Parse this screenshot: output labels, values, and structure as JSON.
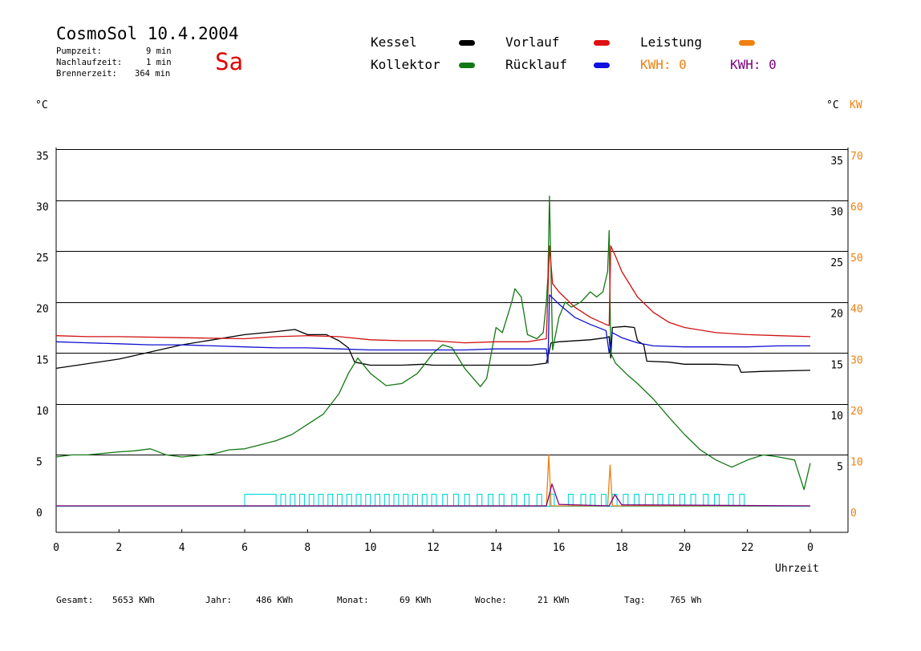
{
  "header": {
    "title": "CosmoSol 10.4.2004",
    "day": "Sa",
    "pumpzeit_label": "Pumpzeit:",
    "pumpzeit_value": "9 min",
    "nachlaufzeit_label": "Nachlaufzeit:",
    "nachlaufzeit_value": "1 min",
    "brennerzeit_label": "Brennerzeit:",
    "brennerzeit_value": "364 min"
  },
  "legend": {
    "kessel": "Kessel",
    "kollektor": "Kollektor",
    "vorlauf": "Vorlauf",
    "ruecklauf": "Rücklauf",
    "leistung": "Leistung",
    "kwh_orange": "KWH: 0",
    "kwh_purple": "KWH: 0"
  },
  "axes": {
    "left_unit": "°C",
    "right_unit_c": "°C",
    "right_unit_kw": "KW",
    "x_label": "Uhrzeit"
  },
  "footer": {
    "gesamt_label": "Gesamt:",
    "gesamt_value": "5653 KWh",
    "jahr_label": "Jahr:",
    "jahr_value": "486 KWh",
    "monat_label": "Monat:",
    "monat_value": "69 KWh",
    "woche_label": "Woche:",
    "woche_value": "21 KWh",
    "tag_label": "Tag:",
    "tag_value": "765 Wh"
  },
  "colors": {
    "kessel": "#000000",
    "kollektor": "#137813",
    "vorlauf": "#d01010",
    "ruecklauf": "#1010d0",
    "leistung": "#f08010",
    "kwh_purple": "#800080",
    "pump": "#00d8d8"
  },
  "chart_data": {
    "type": "line",
    "xlabel": "Uhrzeit",
    "ylabel": "°C",
    "y2label": "KW",
    "xlim": [
      0,
      24
    ],
    "ylim": [
      0,
      35
    ],
    "y2lim": [
      0,
      70
    ],
    "x_tick_labels": [
      "0",
      "2",
      "4",
      "6",
      "8",
      "10",
      "12",
      "14",
      "16",
      "18",
      "20",
      "22",
      "0"
    ],
    "x_tick_hours": [
      0,
      2,
      4,
      6,
      8,
      10,
      12,
      14,
      16,
      18,
      20,
      22,
      24
    ],
    "y_ticks": [
      0,
      5,
      10,
      15,
      20,
      25,
      30,
      35
    ],
    "y_right_c_ticks": [
      5,
      10,
      15,
      20,
      25,
      30,
      35
    ],
    "y2_ticks": [
      0,
      10,
      20,
      30,
      40,
      50,
      60,
      70
    ],
    "grid": true,
    "legend_position": "top",
    "series": [
      {
        "name": "Kessel",
        "color": "#000000",
        "points": [
          [
            0,
            13.5
          ],
          [
            2,
            14.4
          ],
          [
            4,
            15.8
          ],
          [
            6,
            16.8
          ],
          [
            7,
            17.1
          ],
          [
            7.6,
            17.3
          ],
          [
            8,
            16.8
          ],
          [
            8.6,
            16.8
          ],
          [
            9.0,
            16.2
          ],
          [
            9.3,
            15.5
          ],
          [
            9.5,
            14.1
          ],
          [
            10,
            13.8
          ],
          [
            11,
            13.8
          ],
          [
            11.7,
            13.9
          ],
          [
            12,
            13.8
          ],
          [
            13,
            13.8
          ],
          [
            14,
            13.8
          ],
          [
            15.1,
            13.8
          ],
          [
            15.6,
            14.0
          ],
          [
            15.7,
            15.3
          ],
          [
            15.75,
            16.0
          ],
          [
            16,
            16.1
          ],
          [
            17,
            16.3
          ],
          [
            17.5,
            16.5
          ],
          [
            17.6,
            16.6
          ],
          [
            17.65,
            14.5
          ],
          [
            17.7,
            17.5
          ],
          [
            18.1,
            17.6
          ],
          [
            18.4,
            17.5
          ],
          [
            18.5,
            16.2
          ],
          [
            18.7,
            15.8
          ],
          [
            18.8,
            14.2
          ],
          [
            19.5,
            14.1
          ],
          [
            20,
            13.9
          ],
          [
            21,
            13.9
          ],
          [
            21.7,
            13.8
          ],
          [
            21.8,
            13.1
          ],
          [
            22.5,
            13.2
          ],
          [
            24,
            13.3
          ]
        ]
      },
      {
        "name": "Kollektor",
        "color": "#137813",
        "points": [
          [
            0,
            4.8
          ],
          [
            0.5,
            5.0
          ],
          [
            1,
            5.0
          ],
          [
            2,
            5.3
          ],
          [
            2.5,
            5.4
          ],
          [
            3,
            5.6
          ],
          [
            3.5,
            5.0
          ],
          [
            4,
            4.8
          ],
          [
            5,
            5.1
          ],
          [
            5.5,
            5.5
          ],
          [
            6,
            5.6
          ],
          [
            6.5,
            6.0
          ],
          [
            7,
            6.4
          ],
          [
            7.5,
            7.0
          ],
          [
            8,
            8.0
          ],
          [
            8.5,
            9.0
          ],
          [
            9,
            11.0
          ],
          [
            9.3,
            13.0
          ],
          [
            9.6,
            14.5
          ],
          [
            10,
            13.0
          ],
          [
            10.5,
            11.8
          ],
          [
            11,
            12.0
          ],
          [
            11.5,
            13.0
          ],
          [
            12,
            15.0
          ],
          [
            12.3,
            15.8
          ],
          [
            12.6,
            15.5
          ],
          [
            13,
            13.5
          ],
          [
            13.5,
            11.7
          ],
          [
            13.7,
            12.5
          ],
          [
            14,
            17.5
          ],
          [
            14.2,
            17.0
          ],
          [
            14.5,
            20.0
          ],
          [
            14.6,
            21.3
          ],
          [
            14.8,
            20.5
          ],
          [
            15,
            16.8
          ],
          [
            15.3,
            16.4
          ],
          [
            15.5,
            17.0
          ],
          [
            15.6,
            20.0
          ],
          [
            15.65,
            22.5
          ],
          [
            15.7,
            30.4
          ],
          [
            15.8,
            15.3
          ],
          [
            16,
            18.5
          ],
          [
            16.2,
            20.0
          ],
          [
            16.4,
            19.5
          ],
          [
            16.7,
            20.0
          ],
          [
            17,
            21.0
          ],
          [
            17.2,
            20.5
          ],
          [
            17.4,
            21.0
          ],
          [
            17.55,
            23.0
          ],
          [
            17.6,
            27.0
          ],
          [
            17.65,
            15.0
          ],
          [
            17.8,
            14.0
          ],
          [
            18.2,
            12.8
          ],
          [
            18.5,
            12.0
          ],
          [
            19,
            10.5
          ],
          [
            19.5,
            8.7
          ],
          [
            20,
            7.0
          ],
          [
            20.5,
            5.5
          ],
          [
            21,
            4.5
          ],
          [
            21.5,
            3.8
          ],
          [
            22,
            4.5
          ],
          [
            22.5,
            5.0
          ],
          [
            23,
            4.8
          ],
          [
            23.5,
            4.5
          ],
          [
            23.8,
            1.6
          ],
          [
            24,
            4.2
          ]
        ]
      },
      {
        "name": "Vorlauf",
        "color": "#d01010",
        "points": [
          [
            0,
            16.7
          ],
          [
            1,
            16.6
          ],
          [
            2,
            16.6
          ],
          [
            4,
            16.5
          ],
          [
            6,
            16.4
          ],
          [
            7,
            16.6
          ],
          [
            8,
            16.7
          ],
          [
            9,
            16.6
          ],
          [
            10,
            16.3
          ],
          [
            11,
            16.2
          ],
          [
            12,
            16.2
          ],
          [
            13,
            16.0
          ],
          [
            14,
            16.1
          ],
          [
            15,
            16.1
          ],
          [
            15.6,
            16.4
          ],
          [
            15.7,
            25.5
          ],
          [
            15.8,
            21.8
          ],
          [
            16,
            21.0
          ],
          [
            16.5,
            19.5
          ],
          [
            17,
            18.5
          ],
          [
            17.5,
            17.8
          ],
          [
            17.6,
            17.7
          ],
          [
            17.65,
            25.5
          ],
          [
            17.8,
            24.5
          ],
          [
            18,
            23.0
          ],
          [
            18.5,
            20.5
          ],
          [
            19,
            19.0
          ],
          [
            19.5,
            18.0
          ],
          [
            20,
            17.5
          ],
          [
            21,
            17.0
          ],
          [
            22,
            16.8
          ],
          [
            23,
            16.7
          ],
          [
            24,
            16.6
          ]
        ]
      },
      {
        "name": "Rücklauf",
        "color": "#1010d0",
        "points": [
          [
            0,
            16.1
          ],
          [
            1,
            16.0
          ],
          [
            2,
            15.9
          ],
          [
            3,
            15.8
          ],
          [
            4,
            15.8
          ],
          [
            5,
            15.7
          ],
          [
            6,
            15.6
          ],
          [
            7,
            15.5
          ],
          [
            8,
            15.5
          ],
          [
            9,
            15.4
          ],
          [
            10,
            15.3
          ],
          [
            11,
            15.3
          ],
          [
            12,
            15.3
          ],
          [
            13,
            15.3
          ],
          [
            14,
            15.4
          ],
          [
            15,
            15.4
          ],
          [
            15.6,
            15.4
          ],
          [
            15.65,
            14.0
          ],
          [
            15.7,
            20.7
          ],
          [
            16,
            19.8
          ],
          [
            16.5,
            18.5
          ],
          [
            17,
            17.8
          ],
          [
            17.5,
            17.2
          ],
          [
            17.6,
            15.0
          ],
          [
            17.7,
            17.0
          ],
          [
            18,
            16.5
          ],
          [
            18.5,
            16.0
          ],
          [
            19,
            15.7
          ],
          [
            20,
            15.6
          ],
          [
            21,
            15.6
          ],
          [
            22,
            15.6
          ],
          [
            23,
            15.7
          ],
          [
            24,
            15.7
          ]
        ]
      },
      {
        "name": "Leistung",
        "axis": "KW",
        "color": "#f08010",
        "points": [
          [
            0,
            0
          ],
          [
            15.6,
            0
          ],
          [
            15.68,
            10.0
          ],
          [
            15.75,
            0
          ],
          [
            17.55,
            0
          ],
          [
            17.63,
            8.0
          ],
          [
            17.7,
            0
          ],
          [
            24,
            0
          ]
        ]
      },
      {
        "name": "KWH",
        "axis": "KW",
        "color": "#800080",
        "points": [
          [
            0,
            0
          ],
          [
            15.6,
            0
          ],
          [
            15.78,
            4.3
          ],
          [
            16.0,
            0.3
          ],
          [
            17.6,
            0
          ],
          [
            17.78,
            2.2
          ],
          [
            18.0,
            0.2
          ],
          [
            24,
            0
          ]
        ]
      }
    ],
    "pump_on_intervals": [
      [
        6.0,
        7.0
      ],
      [
        7.15,
        7.3
      ],
      [
        7.45,
        7.6
      ],
      [
        7.75,
        7.9
      ],
      [
        8.05,
        8.2
      ],
      [
        8.35,
        8.5
      ],
      [
        8.65,
        8.8
      ],
      [
        8.95,
        9.1
      ],
      [
        9.25,
        9.4
      ],
      [
        9.55,
        9.7
      ],
      [
        9.85,
        10.0
      ],
      [
        10.15,
        10.3
      ],
      [
        10.45,
        10.6
      ],
      [
        10.75,
        10.9
      ],
      [
        11.05,
        11.2
      ],
      [
        11.35,
        11.5
      ],
      [
        11.65,
        11.8
      ],
      [
        11.95,
        12.1
      ],
      [
        12.3,
        12.45
      ],
      [
        12.65,
        12.8
      ],
      [
        13.0,
        13.15
      ],
      [
        13.4,
        13.55
      ],
      [
        13.75,
        13.9
      ],
      [
        14.1,
        14.25
      ],
      [
        14.5,
        14.65
      ],
      [
        14.9,
        15.05
      ],
      [
        15.3,
        15.45
      ],
      [
        15.7,
        15.85
      ],
      [
        16.3,
        16.45
      ],
      [
        16.7,
        16.85
      ],
      [
        17.0,
        17.15
      ],
      [
        17.35,
        17.5
      ],
      [
        17.7,
        17.85
      ],
      [
        18.05,
        18.2
      ],
      [
        18.4,
        18.55
      ],
      [
        18.75,
        19.0
      ],
      [
        19.15,
        19.3
      ],
      [
        19.5,
        19.65
      ],
      [
        19.85,
        20.0
      ],
      [
        20.2,
        20.35
      ],
      [
        20.6,
        20.75
      ],
      [
        20.95,
        21.1
      ],
      [
        21.4,
        21.55
      ],
      [
        21.75,
        21.9
      ]
    ]
  }
}
